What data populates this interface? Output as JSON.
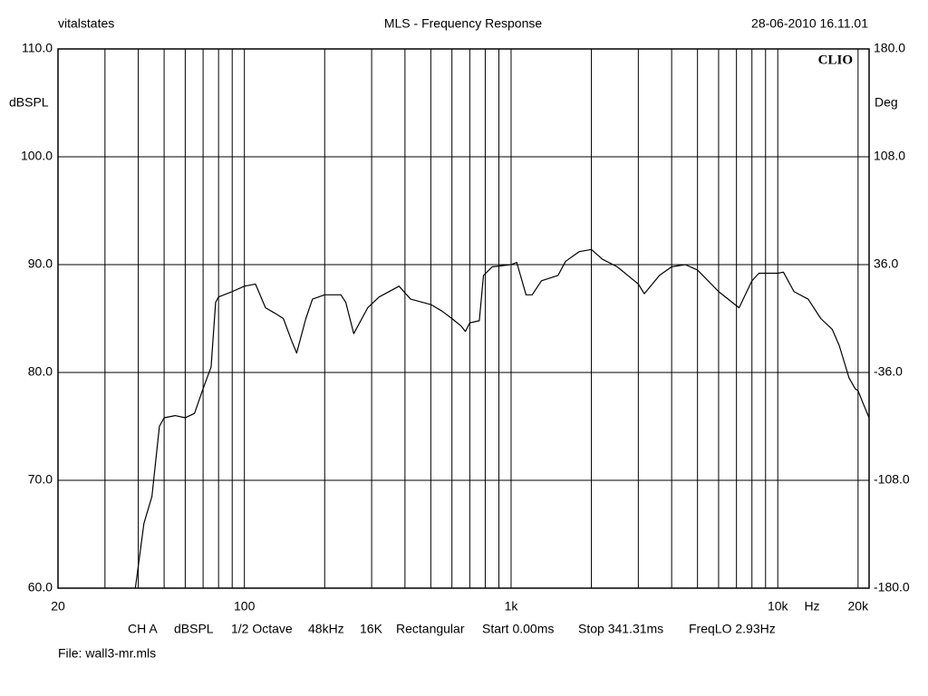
{
  "chart_data": {
    "type": "line",
    "title": "MLS - Frequency Response",
    "header_left": "vitalstates",
    "header_right": "28-06-2010 16.11.01",
    "brand": "CLIO",
    "ylabel": "dBSPL",
    "y2label": "Deg",
    "xlabel": "Hz",
    "footer": [
      "CH A",
      "dBSPL",
      "1/2 Octave",
      "48kHz",
      "16K",
      "Rectangular",
      "Start 0.00ms",
      "Stop 341.31ms",
      "FreqLO 2.93Hz"
    ],
    "file": "File: wall3-mr.mls",
    "xlog": true,
    "grid": true,
    "xlim": [
      20,
      22000
    ],
    "xticks": [
      20,
      100,
      {
        "value": 1000,
        "label": "1k"
      },
      {
        "value": 10000,
        "label": "10k"
      },
      {
        "value": 20000,
        "label": "20k"
      }
    ],
    "xgrid": [
      30,
      40,
      50,
      60,
      70,
      80,
      90,
      100,
      200,
      300,
      400,
      500,
      600,
      700,
      800,
      900,
      1000,
      2000,
      3000,
      4000,
      5000,
      6000,
      7000,
      8000,
      9000,
      10000,
      20000
    ],
    "ylim": [
      60,
      110
    ],
    "yticks": [
      {
        "value": 60,
        "label": "60.0"
      },
      {
        "value": 70,
        "label": "70.0"
      },
      {
        "value": 80,
        "label": "80.0"
      },
      {
        "value": 90,
        "label": "90.0"
      },
      {
        "value": 100,
        "label": "100.0"
      },
      {
        "value": 110,
        "label": "110.0"
      }
    ],
    "y2lim": [
      -180,
      180
    ],
    "y2ticks": [
      {
        "value": -180,
        "label": "-180.0"
      },
      {
        "value": -108,
        "label": "-108.0"
      },
      {
        "value": -36,
        "label": "-36.0"
      },
      {
        "value": 36,
        "label": "36.0"
      },
      {
        "value": 108,
        "label": "108.0"
      },
      {
        "value": 180,
        "label": "180.0"
      }
    ],
    "x": [
      39,
      42,
      45,
      48,
      50,
      55,
      60,
      65,
      70,
      75,
      78,
      80,
      90,
      100,
      110,
      120,
      130,
      140,
      150,
      157,
      170,
      180,
      200,
      230,
      240,
      257,
      290,
      320,
      380,
      420,
      500,
      550,
      600,
      650,
      674,
      700,
      760,
      788,
      850,
      1000,
      1050,
      1138,
      1200,
      1300,
      1500,
      1600,
      1800,
      2000,
      2200,
      2500,
      3000,
      3160,
      3600,
      4000,
      4500,
      5000,
      6000,
      7160,
      8000,
      8500,
      10000,
      10500,
      11500,
      13000,
      14500,
      16000,
      17000,
      18500,
      19500,
      20000,
      21000,
      22000
    ],
    "series": [
      {
        "name": "CH A",
        "color": "#000000",
        "values": [
          60,
          66,
          68.5,
          75,
          75.8,
          76,
          75.8,
          76.2,
          78.5,
          80.5,
          86.5,
          87,
          87.5,
          88,
          88.2,
          86,
          85.5,
          85,
          83,
          81.8,
          85,
          86.8,
          87.2,
          87.2,
          86.5,
          83.6,
          86,
          87,
          88,
          86.8,
          86.3,
          85.7,
          85,
          84.3,
          83.8,
          84.6,
          84.8,
          89,
          89.8,
          90,
          90.2,
          87.2,
          87.2,
          88.5,
          89,
          90.3,
          91.2,
          91.4,
          90.5,
          89.8,
          88.2,
          87.3,
          89,
          89.8,
          90,
          89.5,
          87.5,
          86,
          88.5,
          89.2,
          89.2,
          89.3,
          87.5,
          86.8,
          85,
          84,
          82.5,
          79.5,
          78.5,
          78.3,
          77,
          75.8
        ]
      }
    ]
  }
}
